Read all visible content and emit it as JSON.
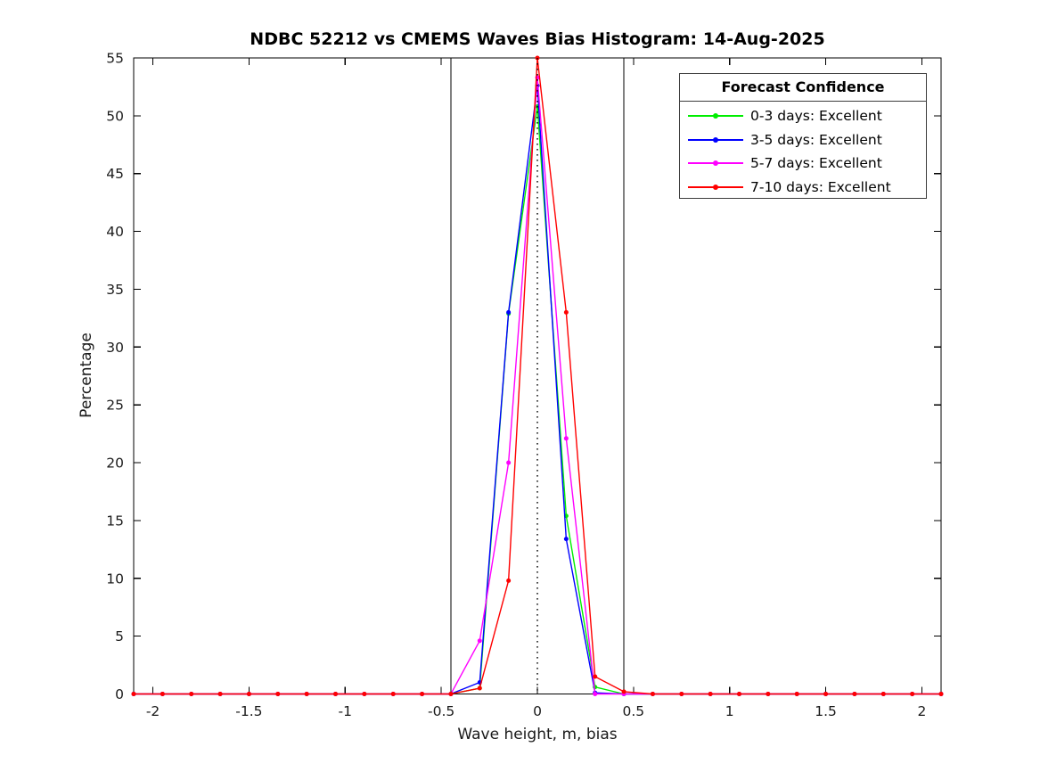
{
  "chart_data": {
    "type": "line",
    "title": "NDBC 52212 vs CMEMS Waves Bias Histogram: 14-Aug-2025",
    "xlabel": "Wave height, m, bias",
    "ylabel": "Percentage",
    "xlim": [
      -2.1,
      2.1
    ],
    "ylim": [
      0,
      55
    ],
    "x_ticks": [
      -2,
      -1.5,
      -1,
      -0.5,
      0,
      0.5,
      1,
      1.5,
      2
    ],
    "x_tick_labels": [
      "-2",
      "-1.5",
      "-1",
      "-0.5",
      "0",
      "0.5",
      "1",
      "1.5",
      "2"
    ],
    "y_ticks": [
      0,
      5,
      10,
      15,
      20,
      25,
      30,
      35,
      40,
      45,
      50,
      55
    ],
    "y_tick_labels": [
      "0",
      "5",
      "10",
      "15",
      "20",
      "25",
      "30",
      "35",
      "40",
      "45",
      "50",
      "55"
    ],
    "grid": false,
    "legend": {
      "title": "Forecast Confidence",
      "position": "top-right"
    },
    "reference_lines": {
      "solid_vertical_x": [
        -0.45,
        0.45
      ],
      "dotted_vertical_x": 0
    },
    "x": [
      -2.1,
      -1.95,
      -1.8,
      -1.65,
      -1.5,
      -1.35,
      -1.2,
      -1.05,
      -0.9,
      -0.75,
      -0.6,
      -0.45,
      -0.3,
      -0.15,
      0,
      0.15,
      0.3,
      0.45,
      0.6,
      0.75,
      0.9,
      1.05,
      1.2,
      1.35,
      1.5,
      1.65,
      1.8,
      1.95,
      2.1
    ],
    "series": [
      {
        "name": "0-3 days",
        "label": "0-3 days: Excellent",
        "color": "#00ee00",
        "values": [
          0,
          0,
          0,
          0,
          0,
          0,
          0,
          0,
          0,
          0,
          0,
          0,
          0.5,
          32.9,
          50.8,
          15.4,
          0.6,
          0,
          0,
          0,
          0,
          0,
          0,
          0,
          0,
          0,
          0,
          0,
          0
        ]
      },
      {
        "name": "3-5 days",
        "label": "3-5 days: Excellent",
        "color": "#0000ff",
        "values": [
          0,
          0,
          0,
          0,
          0,
          0,
          0,
          0,
          0,
          0,
          0,
          0,
          1.0,
          33.0,
          52.6,
          13.4,
          0.1,
          0,
          0,
          0,
          0,
          0,
          0,
          0,
          0,
          0,
          0,
          0,
          0
        ]
      },
      {
        "name": "5-7 days",
        "label": "5-7 days: Excellent",
        "color": "#ff00ff",
        "values": [
          0,
          0,
          0,
          0,
          0,
          0,
          0,
          0,
          0,
          0,
          0,
          0,
          4.6,
          20.0,
          53.3,
          22.1,
          0,
          0,
          0,
          0,
          0,
          0,
          0,
          0,
          0,
          0,
          0,
          0,
          0
        ]
      },
      {
        "name": "7-10 days",
        "label": "7-10 days: Excellent",
        "color": "#ff0000",
        "values": [
          0,
          0,
          0,
          0,
          0,
          0,
          0,
          0,
          0,
          0,
          0,
          0,
          0.5,
          9.8,
          55.0,
          33.0,
          1.5,
          0.2,
          0,
          0,
          0,
          0,
          0,
          0,
          0,
          0,
          0,
          0,
          0
        ]
      }
    ],
    "axis_color": "#000000",
    "tick_label_color": "#1a1a1a"
  }
}
